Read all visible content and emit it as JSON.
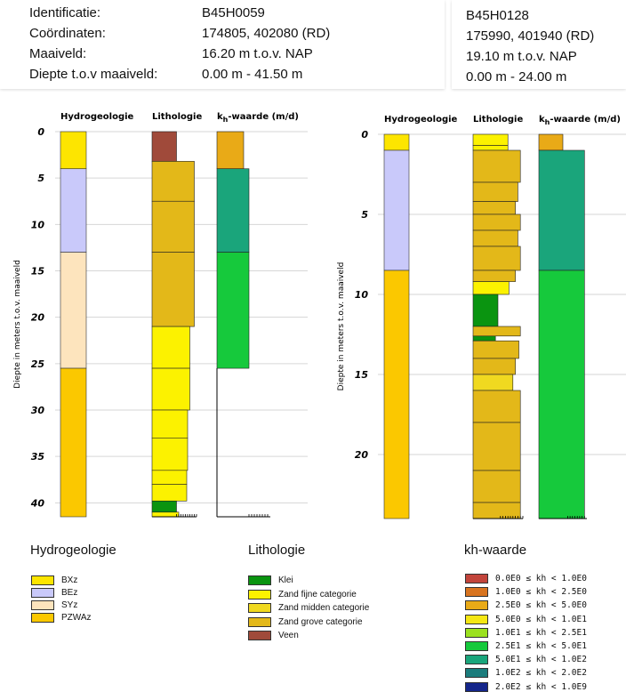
{
  "colors": {
    "BXz": "#fde500",
    "BEz": "#c9c9fa",
    "SYz": "#fde4bd",
    "PZWAz": "#fbc800",
    "klei": "#0a9410",
    "zand_fijn": "#fcf200",
    "zand_midden": "#f0d920",
    "zand_grof": "#e3b819",
    "veen": "#a04a3a",
    "kh": [
      "#c2443b",
      "#d8741f",
      "#e9aa17",
      "#f5e714",
      "#9be11f",
      "#16c93c",
      "#1aa57b",
      "#1b7c7c",
      "#14258a"
    ]
  },
  "header_left": {
    "labels": [
      "Identificatie:",
      "Coördinaten:",
      "Maaiveld:",
      "Diepte t.o.v maaiveld:"
    ],
    "values": [
      "B45H0059",
      "174805, 402080 (RD)",
      "16.20 m t.o.v. NAP",
      "0.00 m - 41.50 m"
    ]
  },
  "header_right": {
    "values": [
      "B45H0128",
      "175990, 401940 (RD)",
      "19.10 m t.o.v. NAP",
      "0.00 m - 24.00 m"
    ]
  },
  "charts": [
    {
      "max_depth": 41.5,
      "axis_max": 41.5,
      "ticks": [
        0,
        5,
        10,
        15,
        20,
        25,
        30,
        35,
        40
      ],
      "hydro": [
        {
          "from": 0,
          "to": 4,
          "unit": "BXz"
        },
        {
          "from": 4,
          "to": 13,
          "unit": "BEz"
        },
        {
          "from": 13,
          "to": 25.5,
          "unit": "SYz"
        },
        {
          "from": 25.5,
          "to": 41.5,
          "unit": "PZWAz"
        }
      ],
      "litho": [
        {
          "from": 0,
          "to": 3.2,
          "type": "veen",
          "width": 0.55
        },
        {
          "from": 3.2,
          "to": 7.5,
          "type": "zand_grof",
          "width": 0.95
        },
        {
          "from": 7.5,
          "to": 13,
          "type": "zand_grof",
          "width": 0.95
        },
        {
          "from": 13,
          "to": 21,
          "type": "zand_grof",
          "width": 0.95
        },
        {
          "from": 21,
          "to": 25.5,
          "type": "zand_fijn",
          "width": 0.85
        },
        {
          "from": 25.5,
          "to": 30,
          "type": "zand_fijn",
          "width": 0.85
        },
        {
          "from": 30,
          "to": 33,
          "type": "zand_fijn",
          "width": 0.8
        },
        {
          "from": 33,
          "to": 36.5,
          "type": "zand_fijn",
          "width": 0.8
        },
        {
          "from": 36.5,
          "to": 38,
          "type": "zand_fijn",
          "width": 0.78
        },
        {
          "from": 38,
          "to": 39.8,
          "type": "zand_fijn",
          "width": 0.78
        },
        {
          "from": 39.8,
          "to": 41,
          "type": "klei",
          "width": 0.55
        },
        {
          "from": 41,
          "to": 41.5,
          "type": "zand_fijn",
          "width": 0.6
        }
      ],
      "kh": [
        {
          "from": 0,
          "to": 4,
          "color_index": 2,
          "width": 0.5
        },
        {
          "from": 4,
          "to": 13,
          "color_index": 6,
          "width": 0.6
        },
        {
          "from": 13,
          "to": 25.5,
          "color_index": 5,
          "width": 0.6
        }
      ]
    },
    {
      "max_depth": 24,
      "axis_max": 24,
      "ticks": [
        0,
        5,
        10,
        15,
        20
      ],
      "hydro": [
        {
          "from": 0,
          "to": 1,
          "unit": "BXz"
        },
        {
          "from": 1,
          "to": 8.5,
          "unit": "BEz"
        },
        {
          "from": 8.5,
          "to": 24,
          "unit": "PZWAz"
        }
      ],
      "litho": [
        {
          "from": 0,
          "to": 0.7,
          "type": "zand_fijn",
          "width": 0.7
        },
        {
          "from": 0.7,
          "to": 1,
          "type": "zand_fijn",
          "width": 0.7
        },
        {
          "from": 1,
          "to": 3,
          "type": "zand_grof",
          "width": 0.95
        },
        {
          "from": 3,
          "to": 4.2,
          "type": "zand_grof",
          "width": 0.9
        },
        {
          "from": 4.2,
          "to": 5,
          "type": "zand_grof",
          "width": 0.85
        },
        {
          "from": 5,
          "to": 6,
          "type": "zand_grof",
          "width": 0.95
        },
        {
          "from": 6,
          "to": 7,
          "type": "zand_grof",
          "width": 0.9
        },
        {
          "from": 7,
          "to": 8.5,
          "type": "zand_grof",
          "width": 0.95
        },
        {
          "from": 8.5,
          "to": 9.2,
          "type": "zand_grof",
          "width": 0.85
        },
        {
          "from": 9.2,
          "to": 10,
          "type": "zand_fijn",
          "width": 0.72
        },
        {
          "from": 10,
          "to": 12,
          "type": "klei",
          "width": 0.5
        },
        {
          "from": 12,
          "to": 12.6,
          "type": "zand_grof",
          "width": 0.95
        },
        {
          "from": 12.6,
          "to": 12.9,
          "type": "klei",
          "width": 0.45
        },
        {
          "from": 12.9,
          "to": 14,
          "type": "zand_grof",
          "width": 0.92
        },
        {
          "from": 14,
          "to": 15,
          "type": "zand_grof",
          "width": 0.85
        },
        {
          "from": 15,
          "to": 16,
          "type": "zand_midden",
          "width": 0.8
        },
        {
          "from": 16,
          "to": 18,
          "type": "zand_grof",
          "width": 0.95
        },
        {
          "from": 18,
          "to": 21,
          "type": "zand_grof",
          "width": 0.95
        },
        {
          "from": 21,
          "to": 23,
          "type": "zand_grof",
          "width": 0.95
        },
        {
          "from": 23,
          "to": 24,
          "type": "zand_grof",
          "width": 0.95
        }
      ],
      "kh": [
        {
          "from": 0,
          "to": 1,
          "color_index": 2,
          "width": 0.5
        },
        {
          "from": 1,
          "to": 8.5,
          "color_index": 6,
          "width": 0.95
        },
        {
          "from": 8.5,
          "to": 24,
          "color_index": 5,
          "width": 0.95
        }
      ]
    }
  ],
  "column_titles": {
    "hydro": "Hydrogeologie",
    "litho": "Lithologie",
    "kh_pre": "k",
    "kh_sub": "h",
    "kh_post": "-waarde (m/d)"
  },
  "axis_label": "Diepte in meters t.o.v. maaiveld",
  "legend": {
    "hydro_title": "Hydrogeologie",
    "hydro_items": [
      {
        "label": "BXz",
        "unit": "BXz"
      },
      {
        "label": "BEz",
        "unit": "BEz"
      },
      {
        "label": "SYz",
        "unit": "SYz"
      },
      {
        "label": "PZWAz",
        "unit": "PZWAz"
      }
    ],
    "litho_title": "Lithologie",
    "litho_items": [
      {
        "label": "Klei",
        "type": "klei"
      },
      {
        "label": "Zand fijne categorie",
        "type": "zand_fijn"
      },
      {
        "label": "Zand midden categorie",
        "type": "zand_midden"
      },
      {
        "label": "Zand grove categorie",
        "type": "zand_grof"
      },
      {
        "label": "Veen",
        "type": "veen"
      }
    ],
    "kh_title": "kh-waarde",
    "kh_items": [
      "0.0E0 ≤ kh < 1.0E0",
      "1.0E0 ≤ kh < 2.5E0",
      "2.5E0 ≤ kh < 5.0E0",
      "5.0E0 ≤ kh < 1.0E1",
      "1.0E1 ≤ kh < 2.5E1",
      "2.5E1 ≤ kh < 5.0E1",
      "5.0E1 ≤ kh < 1.0E2",
      "1.0E2 ≤ kh < 2.0E2",
      "2.0E2 ≤ kh < 1.0E9"
    ]
  }
}
